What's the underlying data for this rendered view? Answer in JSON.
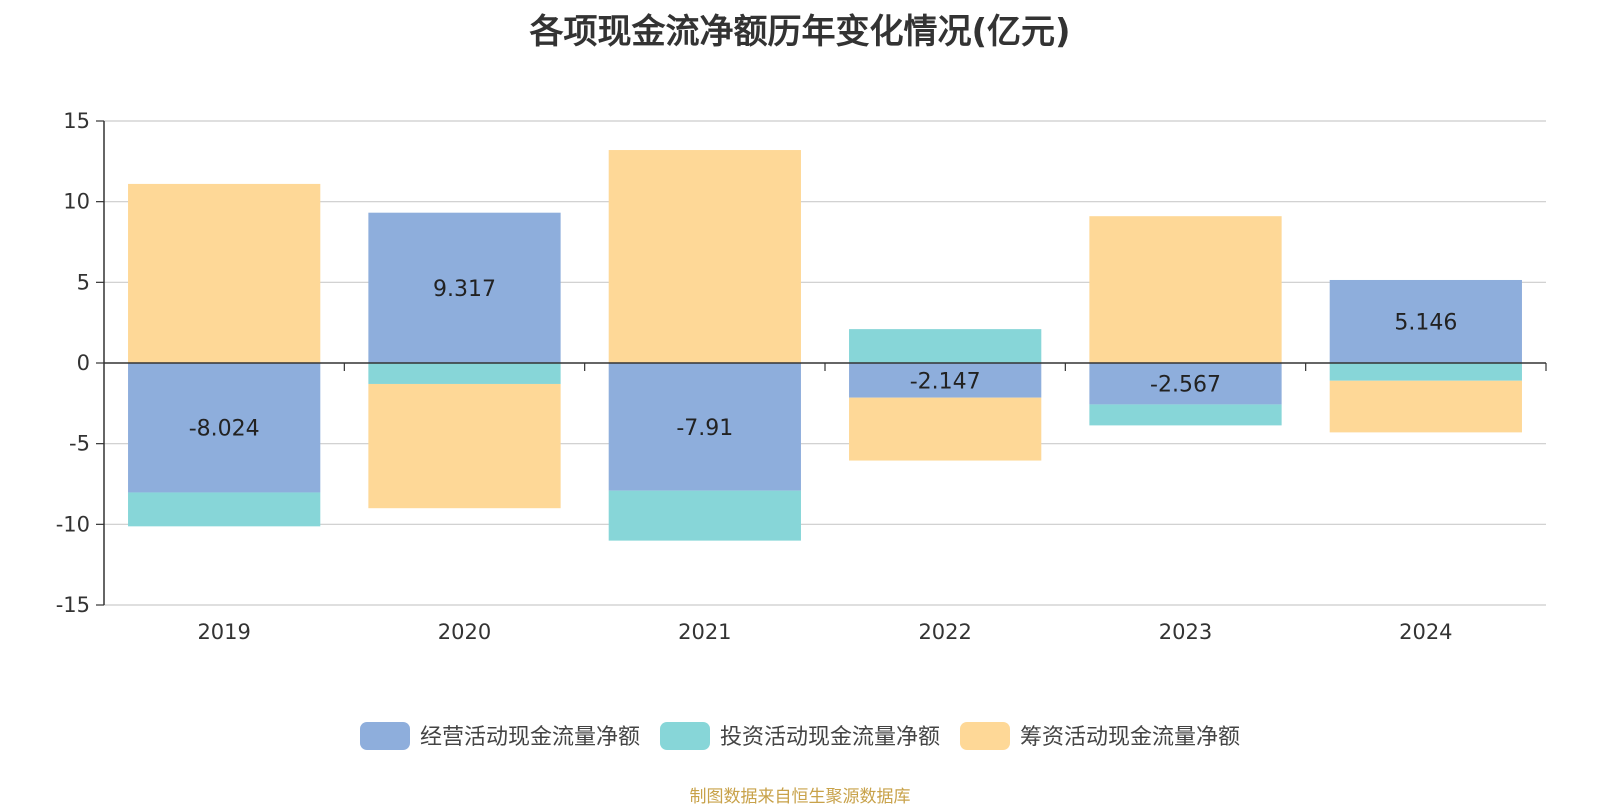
{
  "title": "各项现金流净额历年变化情况(亿元)",
  "source": "制图数据来自恒生聚源数据库",
  "chart_data": {
    "type": "bar",
    "stacked": true,
    "categories": [
      "2019",
      "2020",
      "2021",
      "2022",
      "2023",
      "2024"
    ],
    "ylim": [
      -15,
      15
    ],
    "yticks": [
      15,
      10,
      5,
      0,
      -5,
      -10,
      -15
    ],
    "grid": true,
    "legend_position": "bottom",
    "series": [
      {
        "name": "经营活动现金流量净额",
        "color": "#8eaedc",
        "values": [
          -8.024,
          9.317,
          -7.91,
          -2.147,
          -2.567,
          5.146
        ],
        "labels": [
          "-8.024",
          "9.317",
          "-7.91",
          "-2.147",
          "-2.567",
          "5.146"
        ]
      },
      {
        "name": "投资活动现金流量净额",
        "color": "#87d6d8",
        "values": [
          -2.1,
          -1.3,
          -3.1,
          2.1,
          -1.3,
          -1.1
        ]
      },
      {
        "name": "筹资活动现金流量净额",
        "color": "#fed897",
        "values": [
          11.1,
          -7.7,
          13.2,
          -3.9,
          9.1,
          -3.2
        ]
      }
    ]
  }
}
